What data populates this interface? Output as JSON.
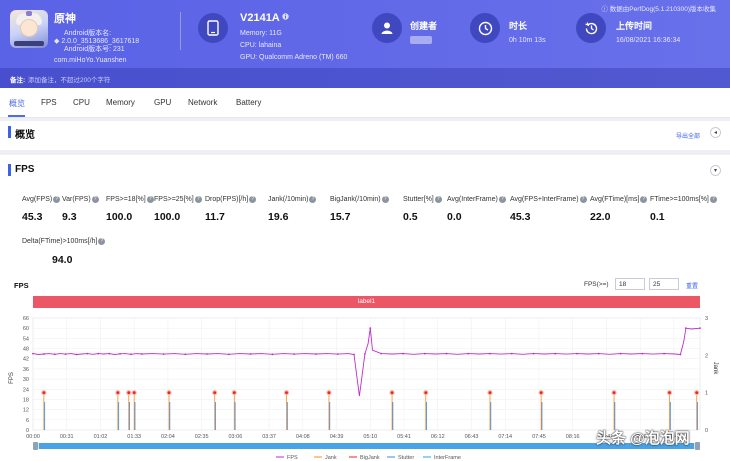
{
  "app": {
    "name": "原神",
    "android_version_label": "Android版本名:",
    "android_version_value": "2.0.0_3513686_3617618",
    "android_code_label": "Android版本号: 231",
    "package": "com.miHoYo.Yuanshen"
  },
  "device": {
    "model": "V2141A",
    "memory": "Memory: 11G",
    "cpu": "CPU: lahaina",
    "gpu": "GPU: Qualcomm Adreno (TM) 660"
  },
  "creator": {
    "label": "创建者"
  },
  "duration": {
    "label": "时长",
    "value": "0h 10m 13s"
  },
  "upload": {
    "label": "上传时间",
    "value": "16/08/2021 16:36:34"
  },
  "version_note": "数据由PerfDog(5.1.210300)版本收集",
  "notes": {
    "label": "备注:",
    "placeholder": "添加备注，不超过200个字符"
  },
  "tabs": [
    "概览",
    "FPS",
    "CPU",
    "Memory",
    "GPU",
    "Network",
    "Battery"
  ],
  "overview": {
    "title": "概览",
    "export": "导出全部"
  },
  "fps_section": {
    "title": "FPS",
    "metrics": [
      {
        "label": "Avg(FPS)",
        "value": "45.3"
      },
      {
        "label": "Var(FPS)",
        "value": "9.3"
      },
      {
        "label": "FPS>=18[%]",
        "value": "100.0"
      },
      {
        "label": "FPS>=25[%]",
        "value": "100.0"
      },
      {
        "label": "Drop(FPS)[/h]",
        "value": "11.7"
      },
      {
        "label": "Jank(/10min)",
        "value": "19.6"
      },
      {
        "label": "BigJank(/10min)",
        "value": "15.7"
      },
      {
        "label": "Stutter[%]",
        "value": "0.5"
      },
      {
        "label": "Avg(InterFrame)",
        "value": "0.0"
      },
      {
        "label": "Avg(FPS+InterFrame)",
        "value": "45.3"
      },
      {
        "label": "Avg(FTime)[ms]",
        "value": "22.0"
      },
      {
        "label": "FTime>=100ms[%]",
        "value": "0.1"
      },
      {
        "label": "Delta(FTime)>100ms[/h]",
        "value": "94.0"
      }
    ]
  },
  "chart_controls": {
    "title": "FPS",
    "filter_label": "FPS(>=)",
    "filter_min": "18",
    "filter_max": "25",
    "reset": "重置",
    "band_label": "label1"
  },
  "chart_data": {
    "type": "line",
    "title": "",
    "xlabel": "",
    "ylabel": "FPS",
    "y2label": "Jank",
    "ylim": [
      0,
      66
    ],
    "y2lim": [
      0,
      3
    ],
    "yticks": [
      0,
      6,
      12,
      18,
      24,
      30,
      36,
      42,
      48,
      54,
      60,
      66
    ],
    "y2ticks": [
      0,
      1,
      2,
      3
    ],
    "x_ticks": [
      "00:00",
      "00:31",
      "01:02",
      "01:33",
      "02:04",
      "02:35",
      "03:06",
      "03:37",
      "04:08",
      "04:39",
      "05:10",
      "05:41",
      "06:12",
      "06:43",
      "07:14",
      "07:45",
      "08:16",
      "08:47",
      "09:18",
      "09:49"
    ],
    "x_range_sec": [
      0,
      613
    ],
    "series": [
      {
        "name": "FPS",
        "color": "#c02ec9",
        "axis": "left",
        "points": [
          [
            0,
            45
          ],
          [
            5,
            44.5
          ],
          [
            10,
            44.8
          ],
          [
            15,
            45
          ],
          [
            20,
            44.6
          ],
          [
            25,
            45
          ],
          [
            30,
            44.7
          ],
          [
            35,
            45
          ],
          [
            40,
            44.5
          ],
          [
            45,
            44.8
          ],
          [
            50,
            45
          ],
          [
            55,
            44.6
          ],
          [
            60,
            45
          ],
          [
            65,
            44.8
          ],
          [
            70,
            45
          ],
          [
            75,
            44.5
          ],
          [
            80,
            44.9
          ],
          [
            85,
            45
          ],
          [
            90,
            44.6
          ],
          [
            95,
            45
          ],
          [
            100,
            44.8
          ],
          [
            110,
            45
          ],
          [
            120,
            44.7
          ],
          [
            130,
            45
          ],
          [
            140,
            44.6
          ],
          [
            150,
            45
          ],
          [
            160,
            44.8
          ],
          [
            170,
            45
          ],
          [
            180,
            44.6
          ],
          [
            190,
            45
          ],
          [
            200,
            44.8
          ],
          [
            210,
            45
          ],
          [
            220,
            44.6
          ],
          [
            230,
            45
          ],
          [
            240,
            44.7
          ],
          [
            250,
            45
          ],
          [
            260,
            44.8
          ],
          [
            270,
            45
          ],
          [
            280,
            44.7
          ],
          [
            290,
            45
          ],
          [
            295,
            44.5
          ],
          [
            300,
            20
          ],
          [
            305,
            44.8
          ],
          [
            308,
            51
          ],
          [
            310,
            60
          ],
          [
            312,
            47
          ],
          [
            320,
            45
          ],
          [
            330,
            44.8
          ],
          [
            340,
            45
          ],
          [
            350,
            44.6
          ],
          [
            360,
            45
          ],
          [
            370,
            44.8
          ],
          [
            380,
            45
          ],
          [
            390,
            44.6
          ],
          [
            400,
            45
          ],
          [
            410,
            44.8
          ],
          [
            420,
            45
          ],
          [
            430,
            44.7
          ],
          [
            440,
            45
          ],
          [
            450,
            44.6
          ],
          [
            460,
            45
          ],
          [
            470,
            44.8
          ],
          [
            480,
            45
          ],
          [
            490,
            44.7
          ],
          [
            500,
            45
          ],
          [
            510,
            44.8
          ],
          [
            520,
            45
          ],
          [
            530,
            44.6
          ],
          [
            540,
            45
          ],
          [
            550,
            44.8
          ],
          [
            560,
            45
          ],
          [
            570,
            44.7
          ],
          [
            580,
            45
          ],
          [
            590,
            44.8
          ],
          [
            595,
            44.5
          ],
          [
            598,
            52
          ],
          [
            600,
            60
          ],
          [
            605,
            59.5
          ],
          [
            613,
            60
          ]
        ]
      },
      {
        "name": "Jank",
        "color": "#ff8c1a",
        "axis": "right",
        "values": []
      },
      {
        "name": "BigJank",
        "color": "#e8261b",
        "axis": "right",
        "events_sec": [
          10,
          78,
          88,
          93,
          125,
          167,
          185,
          233,
          272,
          330,
          361,
          420,
          467,
          534,
          585,
          610
        ]
      },
      {
        "name": "Stutter",
        "color": "#3b8be8",
        "axis": "right",
        "values": []
      },
      {
        "name": "InterFrame",
        "color": "#2aa7e0",
        "axis": "right",
        "values": []
      }
    ],
    "legend_position": "bottom"
  },
  "watermark": "头条 @泡泡网",
  "colors": {
    "header": "#5a62e6",
    "accent": "#3b62e8",
    "band": "#ec5766",
    "fps_line": "#c02ec9"
  }
}
